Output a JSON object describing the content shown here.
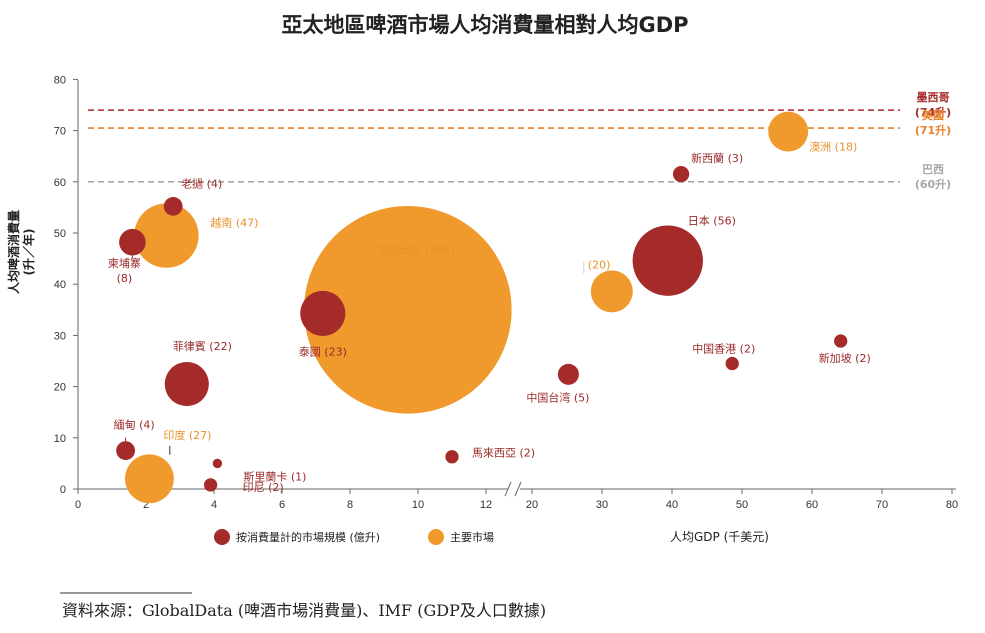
{
  "chart_data": {
    "type": "scatter",
    "title": "亞太地區啤酒市場人均消費量相對人均GDP",
    "ylabel": "人均啤酒消費量",
    "ylabel_unit": "(升／年)",
    "xlabel": "人均GDP (千美元)",
    "ylim": [
      0,
      80
    ],
    "y_ticks": [
      "0",
      "10",
      "20",
      "30",
      "40",
      "50",
      "60",
      "70",
      "80"
    ],
    "x_ticks_left": [
      "0",
      "2",
      "4",
      "6",
      "8",
      "10",
      "12"
    ],
    "x_ticks_right": [
      "20",
      "30",
      "40",
      "50",
      "60",
      "70",
      "80"
    ],
    "x_break": true,
    "grid": false,
    "colors": {
      "market_size": "#a52a2a",
      "major": "#f09a2e",
      "brazil": "#a6a6a6",
      "axis": "#666666"
    },
    "legend": [
      {
        "label": "按消費量計的市場規模 (億升)",
        "color": "#a52a2a"
      },
      {
        "label": "主要市場",
        "color": "#f09a2e"
      }
    ],
    "reference_lines": [
      {
        "name": "墨西哥",
        "value_label": "(74升)",
        "y": 74,
        "color": "#a52a2a"
      },
      {
        "name": "美國",
        "value_label": "(71升)",
        "y": 70.5,
        "color": "#e8822a"
      },
      {
        "name": "巴西",
        "value_label": "(60升)",
        "y": 60,
        "color": "#a6a6a6"
      }
    ],
    "points": [
      {
        "label": "老撾 (4)",
        "x": 2.8,
        "y": 55.2,
        "size": 4,
        "group": "market_size"
      },
      {
        "label": "越南 (47)",
        "x": 2.6,
        "y": 49.5,
        "size": 47,
        "group": "major"
      },
      {
        "label": "柬埔寨",
        "label2": "(8)",
        "x": 1.6,
        "y": 48.2,
        "size": 8,
        "group": "market_size"
      },
      {
        "label": "中国大陆 (488)",
        "x": 9.7,
        "y": 35,
        "size": 488,
        "group": "major"
      },
      {
        "label": "泰國 (23)",
        "x": 7.2,
        "y": 34.3,
        "size": 23,
        "group": "market_size"
      },
      {
        "label": "菲律賓 (22)",
        "x": 3.2,
        "y": 20.5,
        "size": 22,
        "group": "market_size"
      },
      {
        "label": "緬甸 (4)",
        "x": 1.4,
        "y": 7.5,
        "size": 4,
        "group": "market_size"
      },
      {
        "label": "印度 (27)",
        "x": 2.1,
        "y": 2,
        "size": 27,
        "group": "major"
      },
      {
        "label": "斯里蘭卡 (1)",
        "x": 4.1,
        "y": 5,
        "size": 1,
        "group": "market_size"
      },
      {
        "label": "印尼 (2)",
        "x": 3.9,
        "y": 0.8,
        "size": 2,
        "group": "market_size"
      },
      {
        "label": "馬來西亞 (2)",
        "x": 11,
        "y": 6.3,
        "size": 2,
        "group": "market_size"
      },
      {
        "label": "中国台湾 (5)",
        "x": 25.2,
        "y": 22.4,
        "size": 5,
        "group": "market_size"
      },
      {
        "label": "(20)",
        "x": 31.4,
        "y": 38.6,
        "size": 20,
        "group": "major"
      },
      {
        "label": "日本 (56)",
        "x": 39.4,
        "y": 44.6,
        "size": 56,
        "group": "market_size"
      },
      {
        "label": "新西蘭  (3)",
        "x": 41.3,
        "y": 61.5,
        "size": 3,
        "group": "market_size"
      },
      {
        "label": "澳洲 (18)",
        "x": 56.6,
        "y": 69.8,
        "size": 18,
        "group": "major"
      },
      {
        "label": "中国香港 (2)",
        "x": 48.6,
        "y": 24.5,
        "size": 2,
        "group": "market_size"
      },
      {
        "label": "新加坡 (2)",
        "x": 64.1,
        "y": 28.9,
        "size": 2,
        "group": "market_size"
      }
    ]
  },
  "source_note": "資料來源：GlobalData (啤酒市場消費量)、IMF (GDP及人口數據)"
}
